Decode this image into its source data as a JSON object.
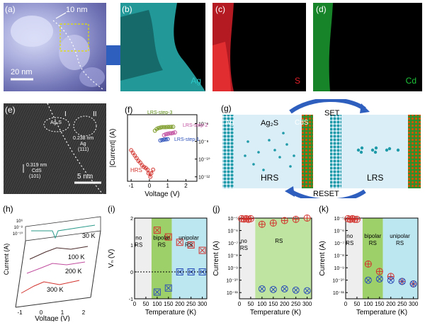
{
  "labels": {
    "a": "(a)",
    "b": "(b)",
    "c": "(c)",
    "d": "(d)",
    "e": "(e)",
    "f": "(f)",
    "g": "(g)",
    "h": "(h)",
    "i": "(i)",
    "j": "(j)",
    "k": "(k)"
  },
  "panel_a": {
    "scale_top": "10 nm",
    "scale_bottom": "20 nm"
  },
  "maps": {
    "ag": "Ag",
    "s": "S",
    "cd": "Cd",
    "colors": {
      "ag": "#2cc9c9",
      "s": "#e0202a",
      "cd": "#1ec53a"
    }
  },
  "panel_e": {
    "region_1": "I",
    "region_2": "II",
    "phase": "Ag₂S",
    "d1": "0.238 nm",
    "plane1_el": "Ag",
    "plane1_hkl": "(111)",
    "d2": "0.319 nm",
    "plane2_el": "CdS",
    "plane2_hkl": "(101)",
    "scale": "5 nm"
  },
  "panel_f": {
    "ylabel": "|Current| (A)",
    "xlabel": "Voltage (V)",
    "step3": "LRS-step-3",
    "step2": "LRS-step-2",
    "step1": "LRS-step-1",
    "hrs": "HRS",
    "xticks": [
      "-1",
      "0",
      "1",
      "2"
    ],
    "yticks": [
      "10⁻⁶",
      "10⁻⁸",
      "10⁻¹⁰",
      "10⁻¹²"
    ]
  },
  "panel_g": {
    "set": "SET",
    "reset": "RESET",
    "ag": "Ag",
    "ag2s": "Ag₂S",
    "cds": "CdS",
    "hrs": "HRS",
    "lrs": "LRS"
  },
  "panel_h": {
    "ylabel": "Current (A)",
    "xlabel": "Voltage (V)",
    "yticks": [
      "10⁶",
      "10⁻⁸",
      "10⁻¹⁰"
    ],
    "temps": [
      "30 K",
      "100 K",
      "200 K",
      "300 K"
    ],
    "xticks": [
      "-1",
      "0",
      "1",
      "2"
    ]
  },
  "panel_i": {
    "ylabel": "Vₙ (V)",
    "xlabel": "Temperature (K)",
    "region1": [
      "no",
      "RS"
    ],
    "region2": [
      "bipolar",
      "RS"
    ],
    "region3": [
      "unipolar",
      "RS"
    ],
    "yticks": [
      "2",
      "1",
      "0",
      "-1"
    ],
    "xticks": [
      "0",
      "50",
      "100",
      "150",
      "200",
      "250",
      "300"
    ]
  },
  "panel_j": {
    "ylabel": "Current (A)",
    "xlabel": "Temperature (K)",
    "region1": [
      "no",
      "RS"
    ],
    "region2": [
      "RS"
    ],
    "yticks": [
      "10⁻⁵",
      "10⁻⁶",
      "10⁻⁷",
      "10⁻⁸",
      "10⁻⁹",
      "10⁻¹⁰",
      "10⁻¹¹"
    ],
    "xticks": [
      "0",
      "50",
      "100",
      "150",
      "200",
      "250",
      "300"
    ]
  },
  "panel_k": {
    "ylabel": "Current (A)",
    "xlabel": "Temperature (K)",
    "region1": [
      "no",
      "RS"
    ],
    "region2": [
      "bipolar",
      "RS"
    ],
    "region3": [
      "unipolar",
      "RS"
    ],
    "yticks": [
      "10⁻⁵",
      "10⁻⁶",
      "10⁻⁷",
      "10⁻⁸",
      "10⁻⁹",
      "10⁻¹⁰",
      "10⁻¹¹"
    ],
    "xticks": [
      "0",
      "50",
      "100",
      "150",
      "200",
      "250",
      "300"
    ]
  },
  "chart_data": [
    {
      "id": "f",
      "type": "scatter",
      "xlabel": "Voltage (V)",
      "ylabel": "|Current| (A)",
      "xlim": [
        -1.2,
        2.6
      ],
      "ylim": [
        -12.5,
        -5
      ],
      "ylog": true,
      "series": [
        {
          "name": "HRS",
          "color": "#d2322d",
          "x": [
            -1.0,
            -0.9,
            -0.8,
            -0.7,
            -0.6,
            -0.5,
            -0.4,
            -0.3,
            -0.2,
            -0.1,
            -0.05,
            0.05,
            0.1,
            0.2
          ],
          "y": [
            -9.0,
            -9.3,
            -9.6,
            -9.9,
            -10.2,
            -10.4,
            -10.7,
            -10.9,
            -11.0,
            -11.2,
            -11.6,
            -12.0,
            -11.6,
            -11.2
          ]
        },
        {
          "name": "LRS-step-3",
          "color": "#7a9a25",
          "x": [
            0.3,
            0.4,
            0.5,
            0.6,
            0.7,
            0.8,
            0.9,
            1.0,
            1.1,
            1.2,
            1.3
          ],
          "y": [
            -6.8,
            -6.6,
            -6.5,
            -6.45,
            -6.4,
            -6.4,
            -6.4,
            -6.38,
            -6.38,
            -6.37,
            -6.36
          ]
        },
        {
          "name": "LRS-step-2",
          "color": "#c04c9e",
          "x": [
            0.8,
            0.9,
            1.0,
            1.1,
            1.2,
            1.3,
            1.4
          ],
          "y": [
            -7.3,
            -7.2,
            -7.15,
            -7.1,
            -7.1,
            -7.05,
            -7.0
          ]
        },
        {
          "name": "LRS-step-1",
          "color": "#2b4fb8",
          "x": [
            0.6,
            0.7,
            0.8,
            0.9,
            1.0
          ],
          "y": [
            -7.9,
            -7.85,
            -7.8,
            -7.78,
            -7.75
          ]
        }
      ]
    },
    {
      "id": "i",
      "type": "scatter",
      "xlabel": "Temperature (K)",
      "ylabel": "Vₙ (V)",
      "xlim": [
        0,
        320
      ],
      "ylim": [
        -1,
        2
      ],
      "series": [
        {
          "marker": "square-x",
          "color": "#d2322d",
          "x": [
            100,
            150,
            200,
            250,
            300
          ],
          "y": [
            1.55,
            1.3,
            1.1,
            1.0,
            0.8
          ]
        },
        {
          "marker": "square-x",
          "color": "#2b4fb8",
          "x": [
            100,
            150,
            200,
            250,
            300
          ],
          "y": [
            -0.75,
            -0.6,
            0.0,
            0.0,
            0.0
          ]
        }
      ]
    },
    {
      "id": "j",
      "type": "scatter",
      "xlabel": "Temperature (K)",
      "ylabel": "Current (A)",
      "xlim": [
        0,
        320
      ],
      "ylim": [
        -11.5,
        -5
      ],
      "ylog": true,
      "series": [
        {
          "marker": "circle-x",
          "color": "#d2322d",
          "x": [
            10,
            20,
            30,
            40,
            50,
            100,
            150,
            200,
            250,
            300
          ],
          "y": [
            -5.05,
            -5.08,
            -5.05,
            -5.1,
            -5.05,
            -5.5,
            -5.4,
            -5.2,
            -5.1,
            -5.0
          ]
        },
        {
          "marker": "circle-x",
          "color": "#2b4fb8",
          "x": [
            100,
            150,
            200,
            250,
            300
          ],
          "y": [
            -10.7,
            -10.75,
            -10.7,
            -10.8,
            -10.85
          ]
        }
      ]
    },
    {
      "id": "k",
      "type": "scatter",
      "xlabel": "Temperature (K)",
      "ylabel": "Current (A)",
      "xlim": [
        0,
        320
      ],
      "ylim": [
        -11.5,
        -5
      ],
      "ylog": true,
      "series": [
        {
          "marker": "circle-x",
          "color": "#d2322d",
          "x": [
            10,
            20,
            30,
            40,
            50,
            100,
            150,
            200,
            250,
            300
          ],
          "y": [
            -5.05,
            -5.1,
            -5.05,
            -5.1,
            -5.1,
            -8.7,
            -9.3,
            -9.7,
            -10.1,
            -10.3
          ]
        },
        {
          "marker": "circle-x",
          "color": "#2b4fb8",
          "x": [
            100,
            150,
            200,
            250,
            300
          ],
          "y": [
            -10.0,
            -9.9,
            -10.0,
            -10.1,
            -10.3
          ]
        }
      ]
    }
  ]
}
